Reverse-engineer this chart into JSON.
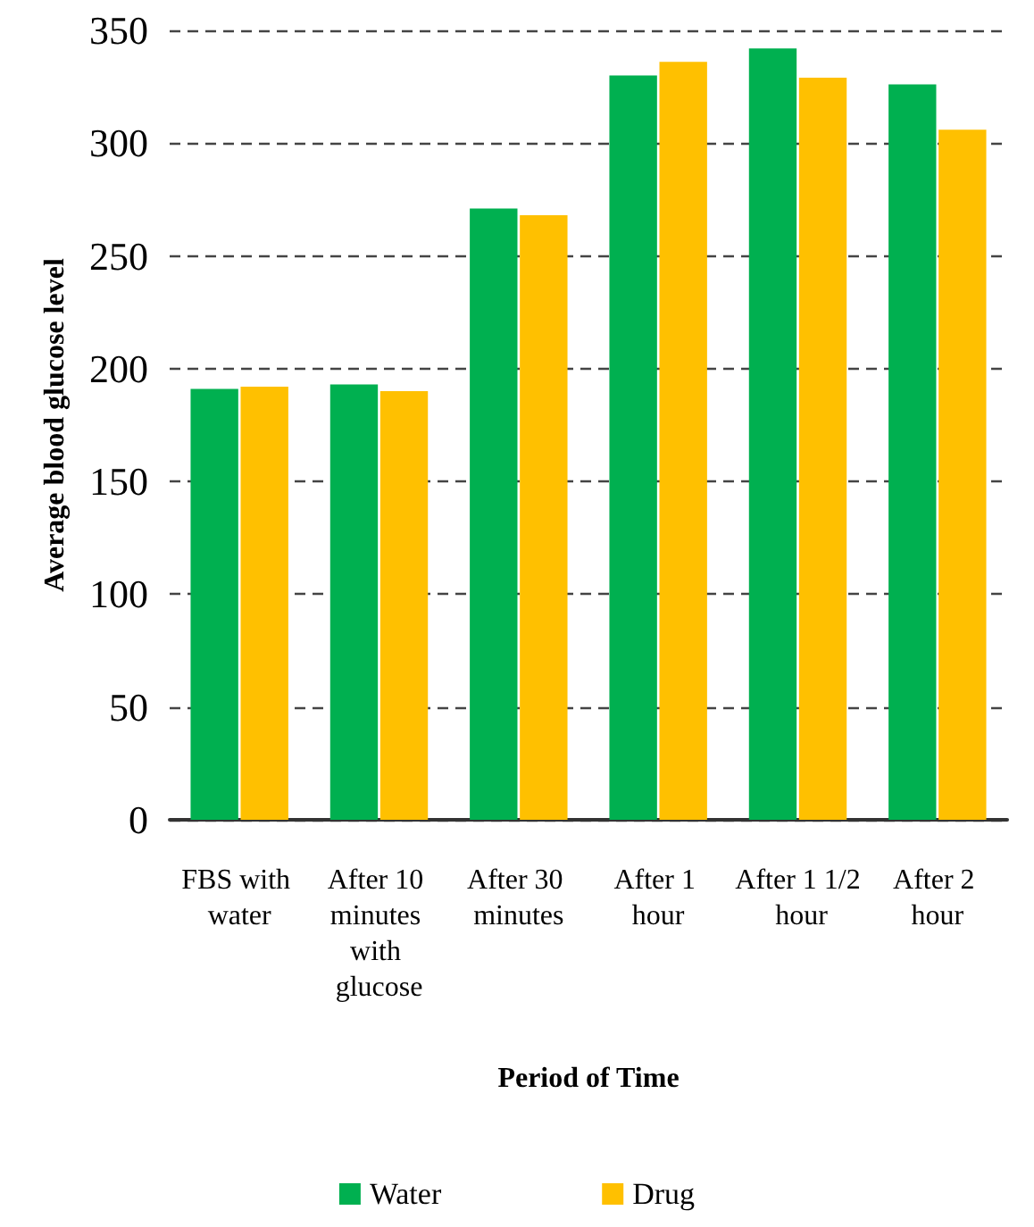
{
  "chart_data": {
    "type": "bar",
    "xlabel": "Period of Time",
    "ylabel": "Average blood glucose level",
    "categories": [
      "FBS with water",
      "After 10 minutes with glucose",
      "After 30 minutes",
      "After 1 hour",
      "After 1 1/2 hour",
      "After 2 hour"
    ],
    "series": [
      {
        "name": "Water",
        "color": "#00b050",
        "values": [
          191,
          193,
          271,
          330,
          342,
          326
        ]
      },
      {
        "name": "Drug",
        "color": "#ffc000",
        "values": [
          192,
          190,
          268,
          336,
          329,
          306
        ]
      }
    ],
    "ylim": [
      0,
      350
    ],
    "yticks": [
      0,
      50,
      100,
      150,
      200,
      250,
      300,
      350
    ],
    "grid": "y",
    "legend": "bottom"
  }
}
